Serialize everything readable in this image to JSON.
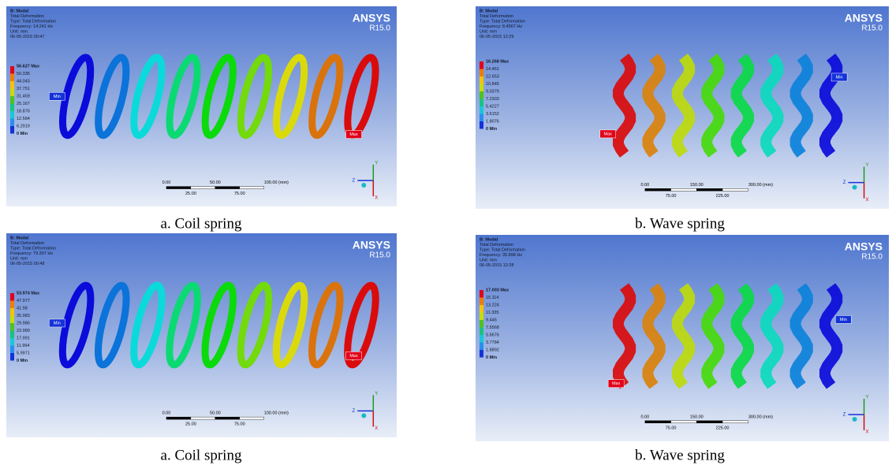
{
  "panels": [
    {
      "header": [
        "B: Modal",
        "Total Deformation",
        "Type: Total Deformation",
        "Frequency: 14.241 Hz",
        "Unit: mm",
        "06-05-2015 00:47"
      ],
      "legend": [
        "56.627 Max",
        "50.335",
        "44.043",
        "37.751",
        "31.459",
        "25.167",
        "18.876",
        "12.584",
        "6.2919",
        "0 Min"
      ],
      "brand": "ANSYS",
      "version": "R15.0",
      "min_tag": "Min",
      "max_tag": "Max",
      "scale_top": [
        "0.00",
        "50.00",
        "100.00 (mm)"
      ],
      "scale_bottom": [
        "25.00",
        "75.00"
      ],
      "axes": [
        "Z",
        "Y",
        "X"
      ],
      "caption": "a. Coil spring"
    },
    {
      "header": [
        "B: Modal",
        "Total Deformation",
        "Type: Total Deformation",
        "Frequency: 8.4567 Hz",
        "Unit: mm",
        "06-05-2015 12:29"
      ],
      "legend": [
        "16.268 Max",
        "14.461",
        "12.653",
        "10.845",
        "9.0379",
        "7.2303",
        "5.4227",
        "3.6152",
        "1.8076",
        "0 Min"
      ],
      "brand": "ANSYS",
      "version": "R15.0",
      "min_tag": "Min",
      "max_tag": "Max",
      "scale_top": [
        "0.00",
        "150.00",
        "300.00 (mm)"
      ],
      "scale_bottom": [
        "75.00",
        "225.00"
      ],
      "axes": [
        "Z",
        "Y",
        "X"
      ],
      "caption": "b. Wave spring"
    },
    {
      "header": [
        "B: Modal",
        "Total Deformation",
        "Type: Total Deformation",
        "Frequency: 79.397 Hz",
        "Unit: mm",
        "06-05-2015 00:48"
      ],
      "legend": [
        "53.974 Max",
        "47.977",
        "41.98",
        "35.983",
        "29.986",
        "23.989",
        "17.991",
        "11.994",
        "5.9971",
        "0 Min"
      ],
      "brand": "ANSYS",
      "version": "R15.0",
      "min_tag": "Min",
      "max_tag": "Max",
      "scale_top": [
        "0.00",
        "50.00",
        "100.00 (mm)"
      ],
      "scale_bottom": [
        "25.00",
        "75.00"
      ],
      "axes": [
        "Z",
        "Y",
        "X"
      ],
      "caption": "a. Coil spring"
    },
    {
      "header": [
        "B: Modal",
        "Total Deformation",
        "Type: Total Deformation",
        "Frequency: 35.898 Hz",
        "Unit: mm",
        "06-05-2015 12:28"
      ],
      "legend": [
        "17.003 Max",
        "15.114",
        "13.224",
        "11.335",
        "9.446",
        "7.5568",
        "5.6676",
        "3.7784",
        "1.8892",
        "0 Min"
      ],
      "brand": "ANSYS",
      "version": "R15.0",
      "min_tag": "Min",
      "max_tag": "Max",
      "scale_top": [
        "0.00",
        "150.00",
        "300.00 (mm)"
      ],
      "scale_bottom": [
        "75.00",
        "225.00"
      ],
      "axes": [
        "Z",
        "Y",
        "X"
      ],
      "caption": "b. Wave spring"
    }
  ]
}
